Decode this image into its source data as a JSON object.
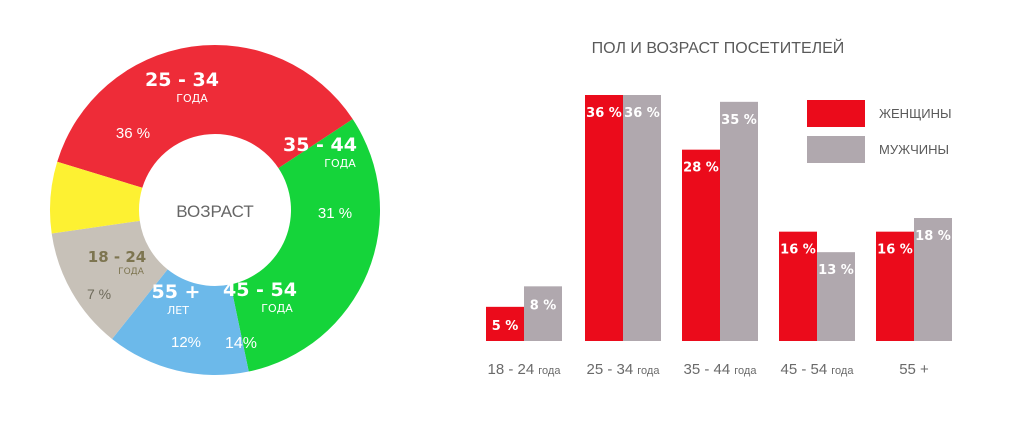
{
  "chart_data": [
    {
      "type": "pie",
      "center_label": "ВОЗРАСТ",
      "slices": [
        {
          "big": "25 - 34",
          "small": "ГОДА",
          "value_label": "36 %",
          "value": 36,
          "color": "#EE2C38"
        },
        {
          "big": "35 - 44",
          "small": "ГОДА",
          "value_label": "31 %",
          "value": 31,
          "color": "#15D43A"
        },
        {
          "big": "45 - 54",
          "small": "ГОДА",
          "value_label": "14%",
          "value": 14,
          "color": "#6CB9EA"
        },
        {
          "big": "55 +",
          "small": "ЛЕТ",
          "value_label": "12%",
          "value": 12,
          "color": "#C7C1B8"
        },
        {
          "big": "18 - 24",
          "small": "ГОДА",
          "value_label": "7 %",
          "value": 7,
          "color": "#FDF132"
        }
      ]
    },
    {
      "type": "bar",
      "title": "ПОЛ И ВОЗРАСТ ПОСЕТИТЕЛЕЙ",
      "categories": [
        {
          "main": "18 - 24",
          "sub": "года"
        },
        {
          "main": "25 - 34",
          "sub": "года"
        },
        {
          "main": "35 - 44",
          "sub": "года"
        },
        {
          "main": "45 - 54",
          "sub": "года"
        },
        {
          "main": "55 +",
          "sub": ""
        }
      ],
      "series": [
        {
          "name": "ЖЕНЩИНЫ",
          "color": "#EB0B1B",
          "values": [
            5,
            36,
            28,
            16,
            16
          ],
          "labels": [
            "5 %",
            "36 %",
            "28 %",
            "16 %",
            "16 %"
          ]
        },
        {
          "name": "МУЖЧИНЫ",
          "color": "#B0A8AE",
          "values": [
            8,
            36,
            35,
            13,
            18
          ],
          "labels": [
            "8 %",
            "36 %",
            "35 %",
            "13 %",
            "18 %"
          ]
        }
      ],
      "ylim": [
        0,
        36
      ],
      "legend": "top-right",
      "grid": false
    }
  ]
}
